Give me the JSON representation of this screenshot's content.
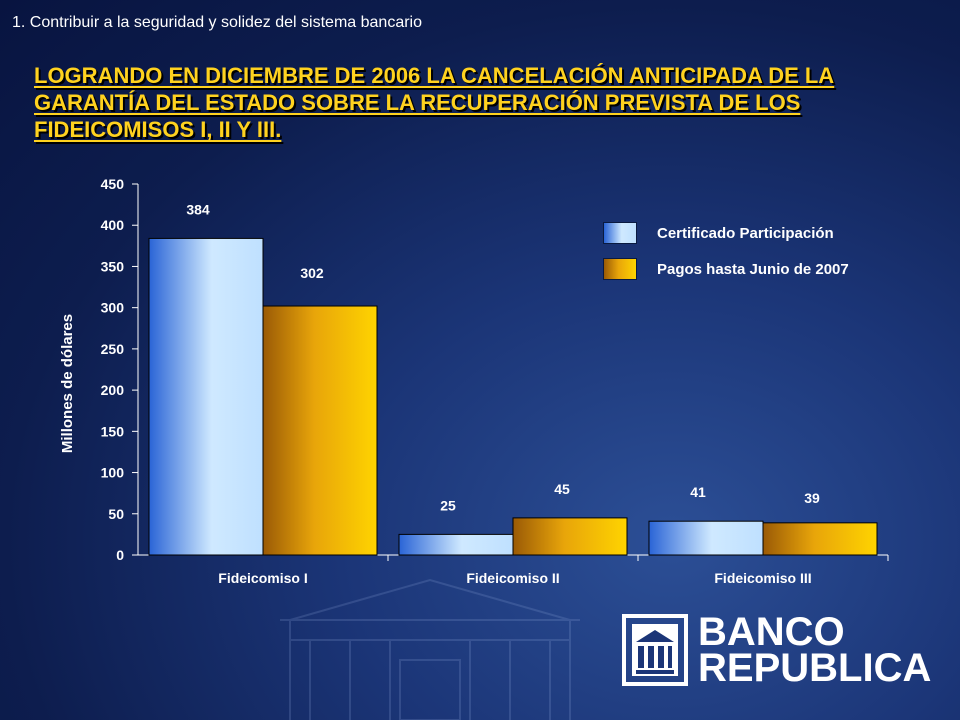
{
  "header": {
    "section_title": "1.  Contribuir a la seguridad y solidez del sistema  bancario",
    "headline": "LOGRANDO EN DICIEMBRE DE 2006 LA CANCELACIÓN ANTICIPADA DE LA GARANTÍA DEL ESTADO SOBRE LA RECUPERACIÓN PREVISTA DE LOS FIDEICOMISOS I, II Y III."
  },
  "chart_data": {
    "type": "bar",
    "categories": [
      "Fideicomiso I",
      "Fideicomiso II",
      "Fideicomiso III"
    ],
    "series": [
      {
        "name": "Certificado Participación",
        "values": [
          384,
          25,
          41
        ],
        "color": "#9fd0ff"
      },
      {
        "name": "Pagos hasta Junio de 2007",
        "values": [
          302,
          45,
          39
        ],
        "color": "#f5b400"
      }
    ],
    "ylabel": "Millones de dólares",
    "ylim": [
      0,
      450
    ],
    "yticks": [
      0,
      50,
      100,
      150,
      200,
      250,
      300,
      350,
      400,
      450
    ],
    "grid": false,
    "legend": "right"
  },
  "logo": {
    "line1": "BANCO",
    "line2": "REPUBLICA"
  },
  "colors": {
    "headline": "#ffd21f",
    "background": "#0d1d4e"
  }
}
